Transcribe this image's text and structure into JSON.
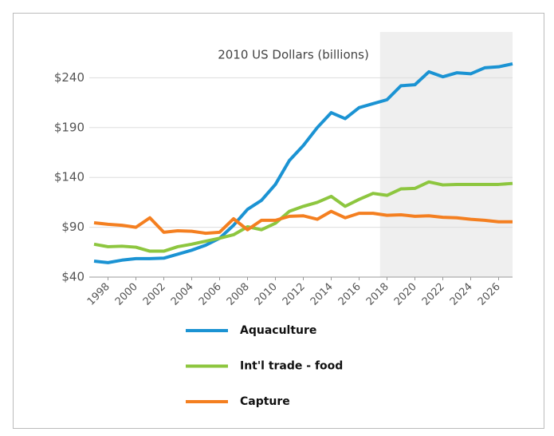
{
  "chart_data": {
    "type": "line",
    "title": "2010 US Dollars (billions)",
    "x": [
      1997,
      1998,
      1999,
      2000,
      2001,
      2002,
      2003,
      2004,
      2005,
      2006,
      2007,
      2008,
      2009,
      2010,
      2011,
      2012,
      2013,
      2014,
      2015,
      2016,
      2017,
      2018,
      2019,
      2020,
      2021,
      2022,
      2023,
      2024,
      2025,
      2026,
      2027
    ],
    "series": [
      {
        "name": "Aquaculture",
        "color": "#1b93d3",
        "values": [
          56,
          54.5,
          57,
          58.5,
          58.5,
          59,
          63,
          67,
          72,
          79,
          92,
          108,
          117,
          133,
          157,
          172,
          190,
          205,
          199,
          210,
          214,
          218,
          232,
          233,
          246,
          241,
          245,
          244,
          250,
          251,
          254
        ]
      },
      {
        "name": "Int'l trade - food",
        "color": "#8dc63f",
        "values": [
          73,
          70.5,
          71,
          70,
          66,
          66,
          70.5,
          73,
          76,
          79,
          82.5,
          90.5,
          87.5,
          94,
          106,
          111,
          115,
          121,
          111,
          118,
          124,
          122,
          128.5,
          129,
          135.5,
          132.5,
          133,
          133,
          133,
          133,
          134
        ]
      },
      {
        "name": "Capture",
        "color": "#f47f20",
        "values": [
          94.5,
          93,
          92,
          90,
          99.5,
          85,
          86.5,
          86,
          84,
          85,
          98.5,
          87.5,
          97,
          97,
          101,
          101.5,
          98,
          106,
          99.5,
          104,
          104,
          102,
          102.5,
          101,
          101.5,
          100,
          99.5,
          98,
          97,
          95.5,
          95.5
        ]
      }
    ],
    "xlim": [
      1997,
      2027
    ],
    "xticks": [
      1998,
      2000,
      2002,
      2004,
      2006,
      2008,
      2010,
      2012,
      2014,
      2016,
      2018,
      2020,
      2022,
      2024,
      2026
    ],
    "ylim": [
      40,
      286
    ],
    "yticks": [
      {
        "value": 40,
        "label": "$40"
      },
      {
        "value": 90,
        "label": "$90"
      },
      {
        "value": 140,
        "label": "$140"
      },
      {
        "value": 190,
        "label": "$190"
      },
      {
        "value": 240,
        "label": "$240"
      }
    ],
    "grid": true,
    "shaded_xrange": [
      2017.5,
      2027
    ]
  }
}
